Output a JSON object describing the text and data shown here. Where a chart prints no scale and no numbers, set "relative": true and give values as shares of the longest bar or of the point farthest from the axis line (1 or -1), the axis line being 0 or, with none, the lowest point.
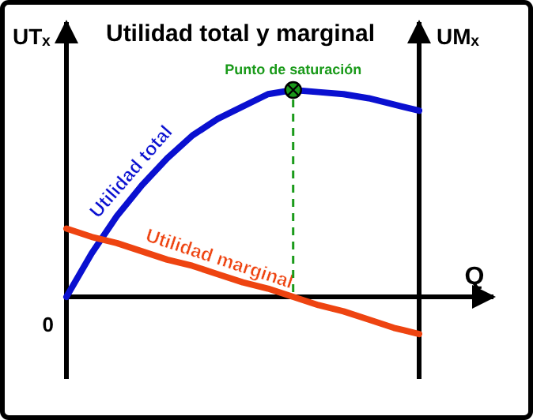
{
  "chart_data": {
    "type": "line",
    "title": "Utilidad total y marginal",
    "xlabel": "Q",
    "ylabel": "UTₓ",
    "y2label": "UMₓ",
    "relative": true,
    "categories": [
      null,
      null,
      null,
      null,
      null,
      null,
      null,
      null,
      null,
      null,
      null,
      null,
      null,
      null,
      null
    ],
    "series": [
      {
        "name": "Utilidad total",
        "color": "#0a10d0",
        "values": [
          0,
          0.21,
          0.39,
          0.54,
          0.67,
          0.78,
          0.86,
          0.92,
          0.98,
          1,
          0.99,
          0.98,
          0.96,
          0.93,
          0.9
        ]
      },
      {
        "name": "Utilidad marginal",
        "color": "#ee4411",
        "values": [
          0.33,
          0.29,
          0.26,
          0.22,
          0.18,
          0.15,
          0.11,
          0.07,
          0.04,
          0,
          -0.04,
          -0.07,
          -0.11,
          -0.15,
          -0.18
        ]
      }
    ],
    "annotations": [
      "Punto de saturación",
      "0"
    ]
  }
}
